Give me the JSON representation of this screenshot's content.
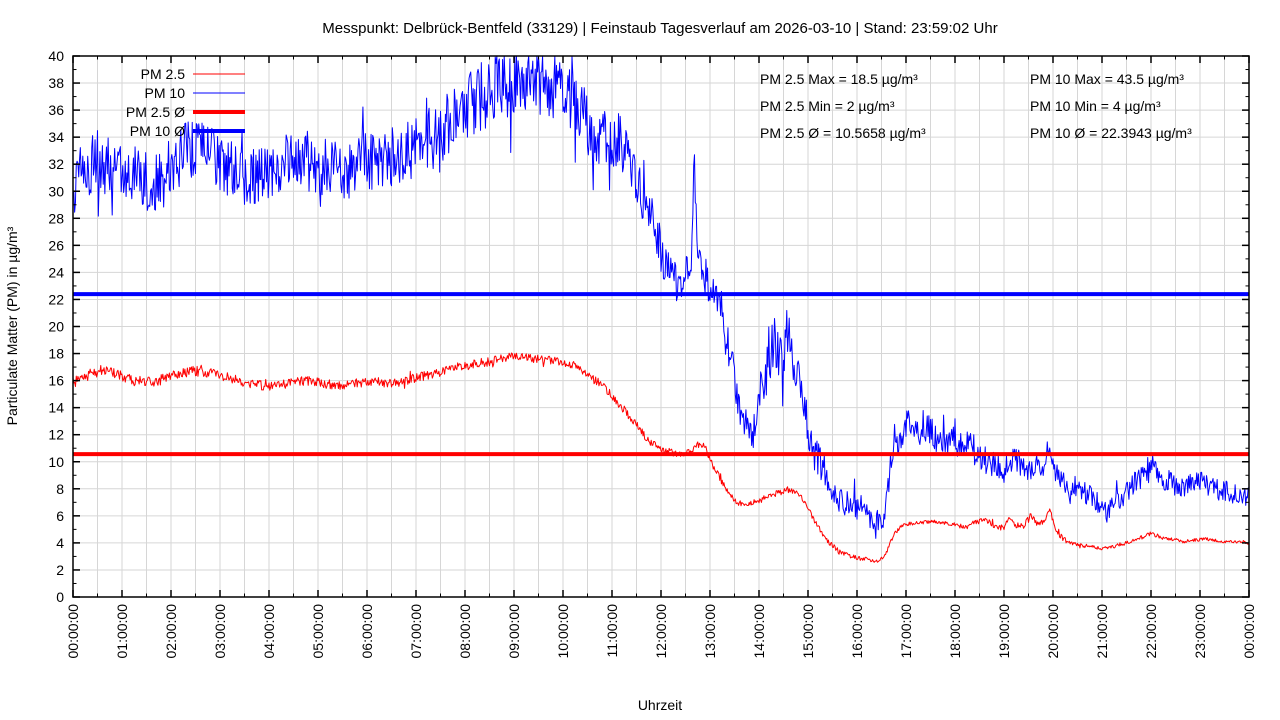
{
  "title": "Messpunkt: Delbrück-Bentfeld (33129) | Feinstaub Tagesverlauf am 2026-03-10 | Stand: 23:59:02 Uhr",
  "stats": {
    "pm25": [
      "PM 2.5 Max = 18.5 µg/m³",
      "PM 2.5 Min = 2 µg/m³",
      "PM 2.5 Ø = 10.5658 µg/m³"
    ],
    "pm10": [
      "PM 10 Max = 43.5 µg/m³",
      "PM 10 Min = 4 µg/m³",
      "PM 10 Ø = 22.3943 µg/m³"
    ]
  },
  "colors": {
    "pm25": "#ff0000",
    "pm10": "#0000ff",
    "grid": "#d6d6d6",
    "border": "#000000",
    "text": "#000000"
  },
  "chart_data": {
    "type": "line",
    "title": "Messpunkt: Delbrück-Bentfeld (33129) | Feinstaub Tagesverlauf am 2026-03-10 | Stand: 23:59:02 Uhr",
    "xlabel": "Uhrzeit",
    "ylabel": "Particulate Matter (PM) in µg/m³",
    "ylim": [
      0,
      40
    ],
    "xlim_hours": [
      0,
      24
    ],
    "y_ticks": [
      0,
      2,
      4,
      6,
      8,
      10,
      12,
      14,
      16,
      18,
      20,
      22,
      24,
      26,
      28,
      30,
      32,
      34,
      36,
      38,
      40
    ],
    "x_ticks": [
      "00:00:00",
      "01:00:00",
      "02:00:00",
      "03:00:00",
      "04:00:00",
      "05:00:00",
      "06:00:00",
      "07:00:00",
      "08:00:00",
      "09:00:00",
      "10:00:00",
      "11:00:00",
      "12:00:00",
      "13:00:00",
      "14:00:00",
      "15:00:00",
      "16:00:00",
      "17:00:00",
      "18:00:00",
      "19:00:00",
      "20:00:00",
      "21:00:00",
      "22:00:00",
      "23:00:00",
      "00:00:00"
    ],
    "grid": {
      "x_step_hours": 0.5,
      "y_step": 2,
      "on": true
    },
    "legend": [
      {
        "label": "PM 2.5",
        "color": "#ff0000",
        "width": 1
      },
      {
        "label": "PM 10",
        "color": "#0000ff",
        "width": 1
      },
      {
        "label": "PM 2.5 Ø",
        "color": "#ff0000",
        "width": 4
      },
      {
        "label": "PM 10 Ø",
        "color": "#0000ff",
        "width": 4
      }
    ],
    "avg_lines": [
      {
        "name": "PM 2.5 Ø",
        "value": 10.5658,
        "color": "#ff0000",
        "width": 4
      },
      {
        "name": "PM 10 Ø",
        "value": 22.3943,
        "color": "#0000ff",
        "width": 4
      }
    ],
    "series": [
      {
        "name": "PM 2.5",
        "color": "#ff0000",
        "width": 1,
        "max": 18.5,
        "min": 2,
        "avg": 10.5658,
        "seed": 12345,
        "spike_prob": 0.02,
        "spike_mul": 1.8,
        "noise": [
          [
            0,
            0.4
          ],
          [
            4,
            0.35
          ],
          [
            8,
            0.35
          ],
          [
            10,
            0.3
          ],
          [
            11.5,
            0.3
          ],
          [
            12.5,
            0.25
          ],
          [
            13.5,
            0.25
          ],
          [
            14.5,
            0.2
          ],
          [
            15.5,
            0.2
          ],
          [
            16.5,
            0.15
          ],
          [
            17.5,
            0.12
          ],
          [
            18.5,
            0.2
          ],
          [
            19.5,
            0.25
          ],
          [
            20,
            0.2
          ],
          [
            21,
            0.12
          ],
          [
            22,
            0.15
          ],
          [
            23,
            0.12
          ],
          [
            24,
            0.1
          ]
        ],
        "points": [
          [
            0,
            15.8
          ],
          [
            0.25,
            16.3
          ],
          [
            0.5,
            16.8
          ],
          [
            0.75,
            16.6
          ],
          [
            1,
            16.3
          ],
          [
            1.25,
            16
          ],
          [
            1.5,
            15.9
          ],
          [
            1.75,
            16
          ],
          [
            2,
            16.4
          ],
          [
            2.25,
            16.6
          ],
          [
            2.5,
            16.7
          ],
          [
            2.75,
            16.6
          ],
          [
            3,
            16.4
          ],
          [
            3.25,
            16.1
          ],
          [
            3.5,
            15.9
          ],
          [
            3.75,
            15.7
          ],
          [
            4,
            15.6
          ],
          [
            4.25,
            15.7
          ],
          [
            4.5,
            15.9
          ],
          [
            4.75,
            16
          ],
          [
            5,
            15.9
          ],
          [
            5.25,
            15.7
          ],
          [
            5.5,
            15.6
          ],
          [
            5.75,
            15.8
          ],
          [
            6,
            16
          ],
          [
            6.25,
            15.9
          ],
          [
            6.5,
            15.8
          ],
          [
            6.75,
            16
          ],
          [
            7,
            16.2
          ],
          [
            7.25,
            16.4
          ],
          [
            7.5,
            16.6
          ],
          [
            7.75,
            16.9
          ],
          [
            8,
            17.1
          ],
          [
            8.25,
            17.3
          ],
          [
            8.5,
            17.4
          ],
          [
            8.75,
            17.6
          ],
          [
            9,
            17.8
          ],
          [
            9.25,
            17.7
          ],
          [
            9.5,
            17.6
          ],
          [
            9.75,
            17.5
          ],
          [
            10,
            17.4
          ],
          [
            10.25,
            17.1
          ],
          [
            10.5,
            16.5
          ],
          [
            10.75,
            15.8
          ],
          [
            11,
            14.9
          ],
          [
            11.2,
            14
          ],
          [
            11.4,
            13.2
          ],
          [
            11.6,
            12.2
          ],
          [
            11.8,
            11.4
          ],
          [
            12,
            10.9
          ],
          [
            12.2,
            10.7
          ],
          [
            12.4,
            10.6
          ],
          [
            12.6,
            10.7
          ],
          [
            12.75,
            11.3
          ],
          [
            12.9,
            11.1
          ],
          [
            13.05,
            9.8
          ],
          [
            13.2,
            8.8
          ],
          [
            13.35,
            7.8
          ],
          [
            13.5,
            7.1
          ],
          [
            13.65,
            6.8
          ],
          [
            13.8,
            6.9
          ],
          [
            14,
            7.1
          ],
          [
            14.2,
            7.5
          ],
          [
            14.4,
            7.7
          ],
          [
            14.6,
            7.9
          ],
          [
            14.75,
            7.7
          ],
          [
            14.9,
            7.2
          ],
          [
            15.05,
            6.2
          ],
          [
            15.2,
            5.2
          ],
          [
            15.35,
            4.4
          ],
          [
            15.5,
            3.8
          ],
          [
            15.65,
            3.3
          ],
          [
            15.8,
            3.1
          ],
          [
            16,
            2.9
          ],
          [
            16.15,
            2.8
          ],
          [
            16.3,
            2.7
          ],
          [
            16.45,
            2.6
          ],
          [
            16.6,
            3.3
          ],
          [
            16.75,
            4.6
          ],
          [
            16.9,
            5.2
          ],
          [
            17.05,
            5.4
          ],
          [
            17.3,
            5.5
          ],
          [
            17.55,
            5.6
          ],
          [
            17.8,
            5.5
          ],
          [
            18,
            5.4
          ],
          [
            18.2,
            5.1
          ],
          [
            18.4,
            5.5
          ],
          [
            18.6,
            5.7
          ],
          [
            18.8,
            5.3
          ],
          [
            19,
            5.1
          ],
          [
            19.1,
            5.8
          ],
          [
            19.25,
            5.3
          ],
          [
            19.4,
            5.2
          ],
          [
            19.55,
            6
          ],
          [
            19.7,
            5.4
          ],
          [
            19.85,
            5.7
          ],
          [
            19.93,
            6.6
          ],
          [
            20.05,
            5
          ],
          [
            20.2,
            4.3
          ],
          [
            20.4,
            3.9
          ],
          [
            20.6,
            3.8
          ],
          [
            20.8,
            3.7
          ],
          [
            21,
            3.6
          ],
          [
            21.2,
            3.7
          ],
          [
            21.4,
            3.9
          ],
          [
            21.6,
            4.1
          ],
          [
            21.8,
            4.4
          ],
          [
            22,
            4.7
          ],
          [
            22.15,
            4.5
          ],
          [
            22.3,
            4.3
          ],
          [
            22.5,
            4.2
          ],
          [
            22.7,
            4.1
          ],
          [
            22.9,
            4.2
          ],
          [
            23.1,
            4.3
          ],
          [
            23.3,
            4.2
          ],
          [
            23.5,
            4.1
          ],
          [
            23.75,
            4.05
          ],
          [
            24,
            4
          ]
        ]
      },
      {
        "name": "PM 10",
        "color": "#0000ff",
        "width": 1,
        "max": 43.5,
        "min": 4,
        "avg": 22.3943,
        "seed": 67890,
        "spike_prob": 0.04,
        "spike_mul": 2.0,
        "noise": [
          [
            0,
            2.2
          ],
          [
            2,
            2.2
          ],
          [
            4,
            2.1
          ],
          [
            6,
            2.2
          ],
          [
            8,
            2.5
          ],
          [
            9.5,
            2.6
          ],
          [
            10.5,
            2.3
          ],
          [
            11.5,
            1.9
          ],
          [
            12.5,
            1.5
          ],
          [
            13.5,
            1.6
          ],
          [
            14.5,
            1.8
          ],
          [
            15.5,
            1.2
          ],
          [
            16.2,
            1.0
          ],
          [
            16.8,
            1.3
          ],
          [
            18,
            1.2
          ],
          [
            19,
            1.0
          ],
          [
            20,
            0.9
          ],
          [
            21,
            0.8
          ],
          [
            22,
            1.0
          ],
          [
            23,
            0.8
          ],
          [
            24,
            0.8
          ]
        ],
        "points": [
          [
            0,
            30.5
          ],
          [
            0.25,
            31.5
          ],
          [
            0.5,
            32.3
          ],
          [
            0.75,
            31.8
          ],
          [
            1,
            32
          ],
          [
            1.25,
            31.2
          ],
          [
            1.5,
            30.8
          ],
          [
            1.75,
            30.5
          ],
          [
            2,
            31.8
          ],
          [
            2.25,
            32.8
          ],
          [
            2.5,
            33.4
          ],
          [
            2.75,
            33
          ],
          [
            3,
            32
          ],
          [
            3.25,
            31.4
          ],
          [
            3.5,
            31
          ],
          [
            3.75,
            31.2
          ],
          [
            4,
            31.5
          ],
          [
            4.25,
            32
          ],
          [
            4.5,
            32.8
          ],
          [
            4.75,
            32.4
          ],
          [
            5,
            32
          ],
          [
            5.25,
            31.6
          ],
          [
            5.5,
            31.4
          ],
          [
            5.75,
            31.8
          ],
          [
            6,
            32.4
          ],
          [
            6.25,
            32
          ],
          [
            6.5,
            32.4
          ],
          [
            6.75,
            32.8
          ],
          [
            7,
            33.2
          ],
          [
            7.25,
            33.8
          ],
          [
            7.5,
            34.4
          ],
          [
            7.75,
            35.2
          ],
          [
            8,
            36
          ],
          [
            8.25,
            36.8
          ],
          [
            8.5,
            37.3
          ],
          [
            8.75,
            37.6
          ],
          [
            9,
            38
          ],
          [
            9.25,
            38.4
          ],
          [
            9.5,
            38.2
          ],
          [
            9.75,
            37.8
          ],
          [
            10,
            37.2
          ],
          [
            10.25,
            36.4
          ],
          [
            10.5,
            35
          ],
          [
            10.75,
            34
          ],
          [
            11,
            33.4
          ],
          [
            11.15,
            34
          ],
          [
            11.3,
            32.5
          ],
          [
            11.5,
            30.5
          ],
          [
            11.7,
            29
          ],
          [
            11.85,
            27.5
          ],
          [
            12,
            25.5
          ],
          [
            12.15,
            24
          ],
          [
            12.3,
            23.2
          ],
          [
            12.45,
            23.6
          ],
          [
            12.55,
            24.5
          ],
          [
            12.63,
            25
          ],
          [
            12.68,
            33.5
          ],
          [
            12.73,
            26
          ],
          [
            12.85,
            24
          ],
          [
            13,
            22.8
          ],
          [
            13.1,
            22
          ],
          [
            13.2,
            21
          ],
          [
            13.35,
            19
          ],
          [
            13.5,
            16
          ],
          [
            13.65,
            13.5
          ],
          [
            13.85,
            11.8
          ],
          [
            14,
            14.5
          ],
          [
            14.15,
            16.5
          ],
          [
            14.3,
            19
          ],
          [
            14.4,
            18
          ],
          [
            14.5,
            17.5
          ],
          [
            14.6,
            19.3
          ],
          [
            14.7,
            17.5
          ],
          [
            14.85,
            15
          ],
          [
            15,
            12.5
          ],
          [
            15.15,
            10.5
          ],
          [
            15.3,
            9.5
          ],
          [
            15.5,
            8
          ],
          [
            15.7,
            7
          ],
          [
            15.9,
            6.8
          ],
          [
            16.1,
            6.6
          ],
          [
            16.3,
            5.8
          ],
          [
            16.45,
            5
          ],
          [
            16.6,
            7
          ],
          [
            16.75,
            11.5
          ],
          [
            16.9,
            12.2
          ],
          [
            17.05,
            13
          ],
          [
            17.2,
            11.8
          ],
          [
            17.35,
            12.8
          ],
          [
            17.5,
            12.2
          ],
          [
            17.65,
            11.6
          ],
          [
            17.8,
            11.8
          ],
          [
            18,
            11.4
          ],
          [
            18.2,
            11.8
          ],
          [
            18.4,
            10.8
          ],
          [
            18.6,
            10.2
          ],
          [
            18.8,
            9.8
          ],
          [
            19,
            9.4
          ],
          [
            19.2,
            10.2
          ],
          [
            19.4,
            9.8
          ],
          [
            19.6,
            9.4
          ],
          [
            19.8,
            9.8
          ],
          [
            19.93,
            11.8
          ],
          [
            20.05,
            9.2
          ],
          [
            20.2,
            8.4
          ],
          [
            20.35,
            8
          ],
          [
            20.5,
            8.4
          ],
          [
            20.7,
            7.6
          ],
          [
            20.9,
            7
          ],
          [
            21.1,
            6.3
          ],
          [
            21.3,
            7
          ],
          [
            21.5,
            7.8
          ],
          [
            21.7,
            8.6
          ],
          [
            21.9,
            9.2
          ],
          [
            22.05,
            9.8
          ],
          [
            22.2,
            8.8
          ],
          [
            22.4,
            8.4
          ],
          [
            22.6,
            8.1
          ],
          [
            22.8,
            8.3
          ],
          [
            23,
            8.6
          ],
          [
            23.2,
            8.2
          ],
          [
            23.4,
            7.9
          ],
          [
            23.6,
            7.8
          ],
          [
            23.8,
            7.6
          ],
          [
            24,
            7.5
          ]
        ]
      }
    ]
  }
}
